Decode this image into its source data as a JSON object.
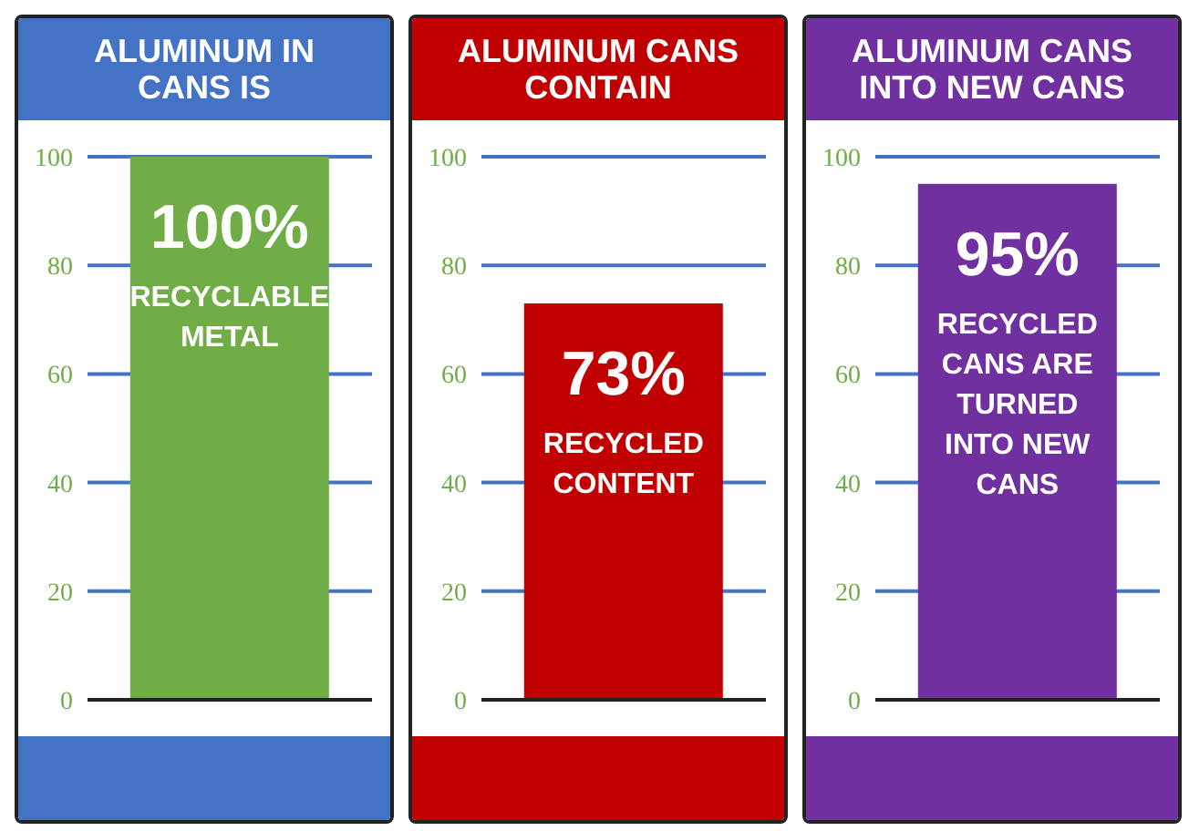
{
  "chart_data": [
    {
      "type": "bar",
      "title": "ALUMINUM IN CANS IS",
      "categories": [
        null
      ],
      "values": [
        100
      ],
      "color": "#70ad47",
      "value_labels": [
        "100%"
      ],
      "annotations": [
        "RECYCLABLE METAL"
      ],
      "ylim": [
        0,
        100
      ],
      "yticks": [
        0,
        20,
        40,
        60,
        80,
        100
      ],
      "grid": "y"
    },
    {
      "type": "bar",
      "title": "ALUMINUM CANS CONTAIN",
      "categories": [
        null
      ],
      "values": [
        73
      ],
      "color": "#c00000",
      "value_labels": [
        "73%"
      ],
      "annotations": [
        "RECYCLED CONTENT"
      ],
      "ylim": [
        0,
        100
      ],
      "yticks": [
        0,
        20,
        40,
        60,
        80,
        100
      ],
      "grid": "y"
    },
    {
      "type": "bar",
      "title": "ALUMINUM CANS INTO NEW CANS",
      "categories": [
        null
      ],
      "values": [
        95
      ],
      "color": "#7030a0",
      "value_labels": [
        "95%"
      ],
      "annotations": [
        "RECYCLED CANS ARE TURNED INTO NEW CANS"
      ],
      "ylim": [
        0,
        100
      ],
      "yticks": [
        0,
        20,
        40,
        60,
        80,
        100
      ],
      "grid": "y"
    }
  ]
}
